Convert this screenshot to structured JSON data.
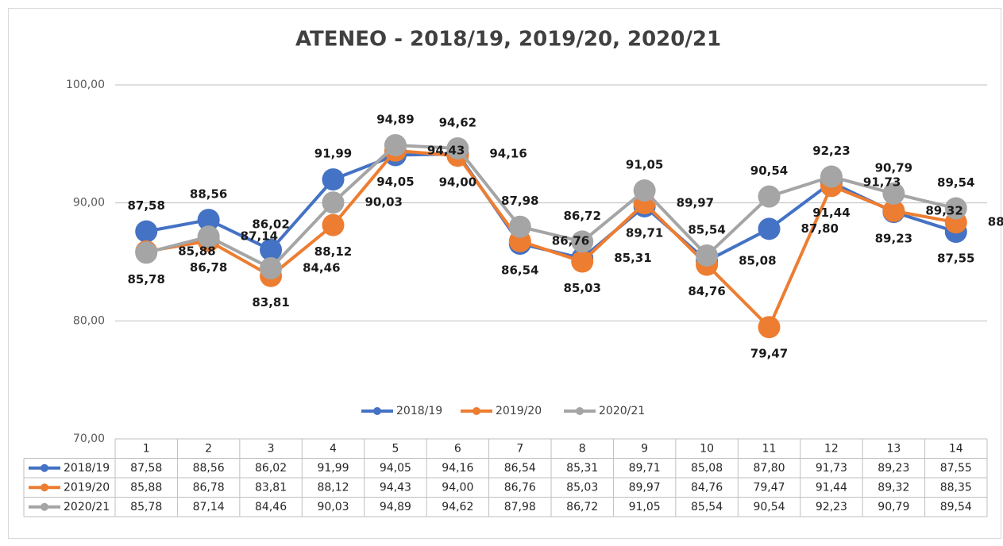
{
  "chart_data": {
    "type": "line",
    "title": "ATENEO - 2018/19, 2019/20, 2020/21",
    "categories": [
      "1",
      "2",
      "3",
      "4",
      "5",
      "6",
      "7",
      "8",
      "9",
      "10",
      "11",
      "12",
      "13",
      "14"
    ],
    "series": [
      {
        "name": "2018/19",
        "color": "#4472c4",
        "values": [
          87.58,
          88.56,
          86.02,
          91.99,
          94.05,
          94.16,
          86.54,
          85.31,
          89.71,
          85.08,
          87.8,
          91.73,
          89.23,
          87.55
        ],
        "value_labels": [
          "87,58",
          "88,56",
          "86,02",
          "91,99",
          "94,05",
          "94,16",
          "86,54",
          "85,31",
          "89,71",
          "85,08",
          "87,80",
          "91,73",
          "89,23",
          "87,55"
        ]
      },
      {
        "name": "2019/20",
        "color": "#ed7d31",
        "values": [
          85.88,
          86.78,
          83.81,
          88.12,
          94.43,
          94.0,
          86.76,
          85.03,
          89.97,
          84.76,
          79.47,
          91.44,
          89.32,
          88.35
        ],
        "value_labels": [
          "85,88",
          "86,78",
          "83,81",
          "88,12",
          "94,43",
          "94,00",
          "86,76",
          "85,03",
          "89,97",
          "84,76",
          "79,47",
          "91,44",
          "89,32",
          "88,35"
        ]
      },
      {
        "name": "2020/21",
        "color": "#a5a5a5",
        "values": [
          85.78,
          87.14,
          84.46,
          90.03,
          94.89,
          94.62,
          87.98,
          86.72,
          91.05,
          85.54,
          90.54,
          92.23,
          90.79,
          89.54
        ],
        "value_labels": [
          "85,78",
          "87,14",
          "84,46",
          "90,03",
          "94,89",
          "94,62",
          "87,98",
          "86,72",
          "91,05",
          "85,54",
          "90,54",
          "92,23",
          "90,79",
          "89,54"
        ]
      }
    ],
    "ylim": [
      70,
      100
    ],
    "yticks": [
      {
        "value": 70,
        "label": "70,00"
      },
      {
        "value": 80,
        "label": "80,00"
      },
      {
        "value": 90,
        "label": "90,00"
      },
      {
        "value": 100,
        "label": "100,00"
      }
    ],
    "grid": true
  }
}
